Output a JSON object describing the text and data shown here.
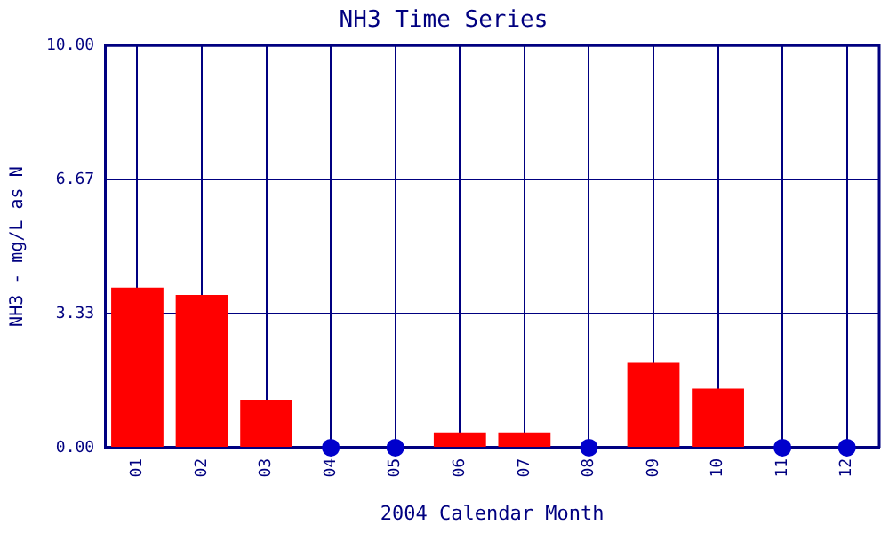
{
  "chart_data": {
    "type": "bar",
    "title": "NH3 Time Series",
    "xlabel": "2004 Calendar Month",
    "ylabel": "NH3 - mg/L as N",
    "categories": [
      "01",
      "02",
      "03",
      "04",
      "05",
      "06",
      "07",
      "08",
      "09",
      "10",
      "11",
      "12"
    ],
    "series": [
      {
        "color": "#ff0000",
        "values": [
          3.98,
          3.8,
          1.19,
          null,
          null,
          0.38,
          0.38,
          null,
          2.11,
          1.47,
          null,
          null
        ]
      },
      {
        "type": "scatter",
        "color": "#0000cc",
        "x": [
          "04",
          "05",
          "08",
          "11",
          "12"
        ],
        "values": [
          0,
          0,
          0,
          0,
          0
        ]
      }
    ],
    "ylim": [
      0,
      10
    ],
    "yticks": [
      {
        "value": 0,
        "label": "0.00"
      },
      3.33,
      6.67,
      {
        "value": 10,
        "label": "10.00"
      }
    ],
    "grid": true,
    "legend": false,
    "marker": "circle"
  }
}
